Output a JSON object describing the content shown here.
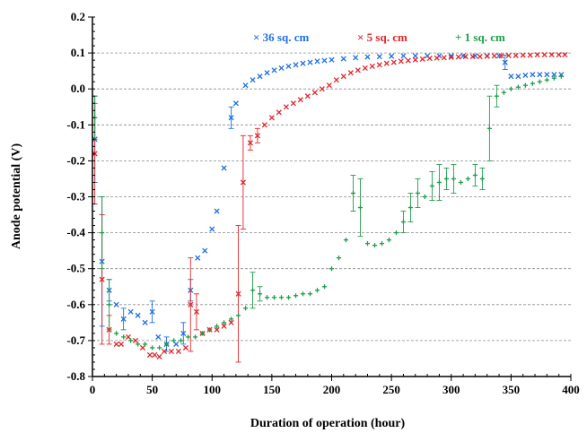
{
  "chart_data": {
    "type": "scatter",
    "title": "",
    "xlabel": "Duration of operation (hour)",
    "ylabel": "Anode potential (V)",
    "xlim": [
      0,
      400
    ],
    "ylim": [
      -0.8,
      0.2
    ],
    "x_ticks": [
      "0",
      "50",
      "100",
      "150",
      "200",
      "250",
      "300",
      "350",
      "400"
    ],
    "y_ticks": [
      "0.2",
      "0.1",
      "0.0",
      "-0.1",
      "-0.2",
      "-0.3",
      "-0.4",
      "-0.5",
      "-0.6",
      "-0.7",
      "-0.8"
    ],
    "y_tick_values": [
      0.2,
      0.1,
      0.0,
      -0.1,
      -0.2,
      -0.3,
      -0.4,
      -0.5,
      -0.6,
      -0.7,
      -0.8
    ],
    "x_tick_values": [
      0,
      50,
      100,
      150,
      200,
      250,
      300,
      350,
      400
    ],
    "grid": "horizontal-dashed",
    "legend_position": "top",
    "series": [
      {
        "name": "36 sq. cm",
        "legend_label": "36 sq. cm",
        "marker_glyph": "×",
        "color": "#1f6fe0",
        "x": [
          2,
          8,
          14,
          20,
          26,
          32,
          38,
          44,
          50,
          55,
          62,
          70,
          76,
          82,
          88,
          94,
          100,
          104,
          110,
          116,
          120,
          128,
          134,
          140,
          146,
          152,
          158,
          164,
          170,
          176,
          182,
          188,
          194,
          200,
          210,
          220,
          230,
          240,
          250,
          260,
          270,
          280,
          290,
          300,
          310,
          320,
          330,
          340,
          345,
          350,
          356,
          362,
          368,
          374,
          380,
          386,
          392
        ],
        "y": [
          -0.14,
          -0.48,
          -0.56,
          -0.6,
          -0.64,
          -0.62,
          -0.63,
          -0.65,
          -0.62,
          -0.69,
          -0.71,
          -0.71,
          -0.68,
          -0.56,
          -0.47,
          -0.45,
          -0.39,
          -0.34,
          -0.22,
          -0.08,
          -0.04,
          0.01,
          0.025,
          0.035,
          0.045,
          0.052,
          0.058,
          0.063,
          0.067,
          0.071,
          0.074,
          0.077,
          0.079,
          0.081,
          0.084,
          0.087,
          0.089,
          0.09,
          0.091,
          0.092,
          0.092,
          0.092,
          0.092,
          0.092,
          0.092,
          0.092,
          0.092,
          0.092,
          0.074,
          0.035,
          0.035,
          0.038,
          0.04,
          0.04,
          0.04,
          0.04,
          0.04
        ],
        "err": [
          0.12,
          0.18,
          0.03,
          0,
          0.03,
          0,
          0,
          0,
          0.03,
          0,
          0.02,
          0,
          0.03,
          0.03,
          0,
          0,
          0,
          0,
          0,
          0.03,
          0,
          0,
          0,
          0,
          0,
          0,
          0,
          0,
          0,
          0,
          0,
          0,
          0,
          0,
          0,
          0,
          0,
          0,
          0,
          0,
          0,
          0,
          0,
          0,
          0,
          0,
          0,
          0,
          0.02,
          0,
          0,
          0,
          0,
          0,
          0,
          0,
          0
        ]
      },
      {
        "name": "5 sq. cm",
        "legend_label": "5 sq. cm",
        "marker_glyph": "×",
        "color": "#e0262b",
        "x": [
          2,
          8,
          14,
          20,
          24,
          30,
          36,
          42,
          48,
          52,
          56,
          60,
          66,
          72,
          78,
          82,
          87,
          92,
          98,
          104,
          110,
          116,
          122,
          126,
          132,
          138,
          144,
          150,
          156,
          162,
          168,
          174,
          180,
          186,
          192,
          198,
          204,
          210,
          216,
          222,
          228,
          234,
          240,
          246,
          252,
          258,
          264,
          270,
          276,
          282,
          288,
          294,
          300,
          306,
          312,
          318,
          324,
          330,
          336,
          342,
          348,
          354,
          360,
          366,
          372,
          378,
          384,
          390,
          395
        ],
        "y": [
          -0.18,
          -0.53,
          -0.67,
          -0.71,
          -0.71,
          -0.69,
          -0.7,
          -0.72,
          -0.74,
          -0.74,
          -0.745,
          -0.73,
          -0.73,
          -0.73,
          -0.72,
          -0.6,
          -0.62,
          -0.68,
          -0.67,
          -0.67,
          -0.66,
          -0.65,
          -0.57,
          -0.26,
          -0.15,
          -0.13,
          -0.1,
          -0.08,
          -0.065,
          -0.05,
          -0.04,
          -0.03,
          -0.02,
          -0.01,
          0.0,
          0.01,
          0.025,
          0.035,
          0.045,
          0.052,
          0.058,
          0.063,
          0.067,
          0.071,
          0.074,
          0.077,
          0.079,
          0.081,
          0.083,
          0.085,
          0.086,
          0.087,
          0.088,
          0.089,
          0.09,
          0.09,
          0.09,
          0.091,
          0.092,
          0.092,
          0.093,
          0.093,
          0.094,
          0.094,
          0.095,
          0.095,
          0.095,
          0.095,
          0.095
        ],
        "err": [
          0.14,
          0.18,
          0.04,
          0,
          0,
          0,
          0,
          0,
          0,
          0,
          0,
          0,
          0,
          0,
          0,
          0.13,
          0.05,
          0,
          0,
          0,
          0,
          0,
          0.19,
          0.13,
          0.02,
          0.02,
          0,
          0,
          0,
          0,
          0,
          0,
          0,
          0,
          0,
          0,
          0,
          0,
          0,
          0,
          0,
          0,
          0,
          0,
          0,
          0,
          0,
          0,
          0,
          0,
          0,
          0,
          0,
          0,
          0,
          0,
          0,
          0,
          0,
          0,
          0,
          0,
          0,
          0,
          0,
          0,
          0,
          0,
          0
        ]
      },
      {
        "name": "1 sq. cm",
        "legend_label": "1 sq. cm",
        "marker_glyph": "+",
        "color": "#1f9e4a",
        "x": [
          2,
          8,
          14,
          20,
          26,
          32,
          38,
          44,
          50,
          56,
          62,
          68,
          74,
          80,
          86,
          92,
          98,
          104,
          110,
          116,
          122,
          128,
          134,
          140,
          146,
          152,
          158,
          164,
          170,
          176,
          182,
          188,
          194,
          200,
          206,
          212,
          218,
          224,
          230,
          236,
          242,
          248,
          254,
          260,
          266,
          272,
          278,
          284,
          290,
          296,
          302,
          308,
          314,
          320,
          326,
          332,
          338,
          344,
          350,
          356,
          362,
          368,
          374,
          380,
          386,
          392
        ],
        "y": [
          -0.08,
          -0.4,
          -0.6,
          -0.68,
          -0.69,
          -0.7,
          -0.71,
          -0.71,
          -0.72,
          -0.72,
          -0.71,
          -0.7,
          -0.7,
          -0.69,
          -0.69,
          -0.68,
          -0.67,
          -0.66,
          -0.65,
          -0.64,
          -0.63,
          -0.61,
          -0.56,
          -0.57,
          -0.58,
          -0.58,
          -0.58,
          -0.58,
          -0.575,
          -0.57,
          -0.57,
          -0.56,
          -0.55,
          -0.5,
          -0.47,
          -0.42,
          -0.29,
          -0.33,
          -0.43,
          -0.435,
          -0.43,
          -0.42,
          -0.4,
          -0.37,
          -0.33,
          -0.29,
          -0.3,
          -0.27,
          -0.26,
          -0.25,
          -0.25,
          -0.26,
          -0.25,
          -0.24,
          -0.25,
          -0.11,
          -0.02,
          -0.01,
          0.0,
          0.005,
          0.01,
          0.015,
          0.02,
          0.025,
          0.03,
          0.035
        ],
        "err": [
          0.06,
          0.1,
          0.07,
          0,
          0,
          0,
          0,
          0,
          0,
          0,
          0,
          0,
          0,
          0,
          0,
          0,
          0,
          0,
          0,
          0,
          0,
          0,
          0.05,
          0.02,
          0,
          0,
          0,
          0,
          0,
          0,
          0,
          0,
          0,
          0,
          0,
          0,
          0.05,
          0.08,
          0,
          0,
          0,
          0,
          0,
          0.03,
          0.04,
          0.04,
          0,
          0.04,
          0.05,
          0.03,
          0.04,
          0,
          0,
          0.03,
          0.03,
          0.09,
          0.03,
          0,
          0,
          0,
          0,
          0,
          0,
          0,
          0,
          0
        ]
      }
    ]
  }
}
